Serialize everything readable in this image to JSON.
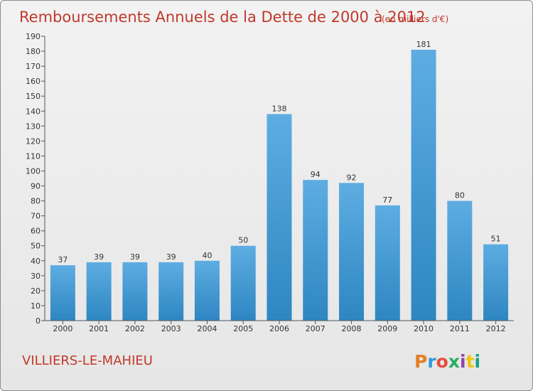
{
  "header": {
    "title": "Remboursements Annuels de la Dette de 2000 à 2012",
    "unit": "(en milliers d'€)"
  },
  "commune": "VILLIERS-LE-MAHIEU",
  "brand": {
    "name": "Proxiti",
    "colors": [
      "#e67e22",
      "#3498db",
      "#e74c3c",
      "#27ae60",
      "#8e44ad",
      "#f1c40f",
      "#16a085"
    ]
  },
  "chart_data": {
    "type": "bar",
    "title": "Remboursements Annuels de la Dette de 2000 à 2012",
    "categories": [
      "2000",
      "2001",
      "2002",
      "2003",
      "2004",
      "2005",
      "2006",
      "2007",
      "2008",
      "2009",
      "2010",
      "2011",
      "2012"
    ],
    "values": [
      37,
      39,
      39,
      39,
      40,
      50,
      138,
      94,
      92,
      77,
      181,
      80,
      51
    ],
    "ylim": [
      0,
      190
    ],
    "ytick_step": 10,
    "grid": false,
    "legend": "none",
    "colors": {
      "bar_light": "#5dade2",
      "bar_dark": "#2e86c1",
      "axis": "#555555"
    }
  }
}
